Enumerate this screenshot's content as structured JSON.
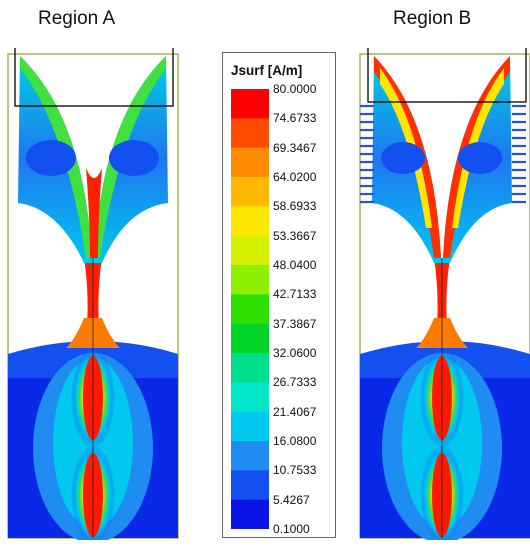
{
  "regions": [
    {
      "label": "Region A"
    },
    {
      "label": "Region B"
    }
  ],
  "legend": {
    "title": "Jsurf [A/m]",
    "ticks": [
      "80.0000",
      "74.6733",
      "69.3467",
      "64.0200",
      "58.6933",
      "53.3667",
      "48.0400",
      "42.7133",
      "37.3867",
      "32.0600",
      "26.7333",
      "21.4067",
      "16.0800",
      "10.7533",
      "5.4267",
      "0.1000"
    ],
    "colors": [
      "#ff0000",
      "#ff4a00",
      "#ff8c00",
      "#ffb800",
      "#ffe600",
      "#d4f000",
      "#8ef000",
      "#2ee000",
      "#00d52a",
      "#00e08c",
      "#00e6c8",
      "#00c8ee",
      "#1e8cf0",
      "#1450f0",
      "#0a14e6"
    ]
  }
}
